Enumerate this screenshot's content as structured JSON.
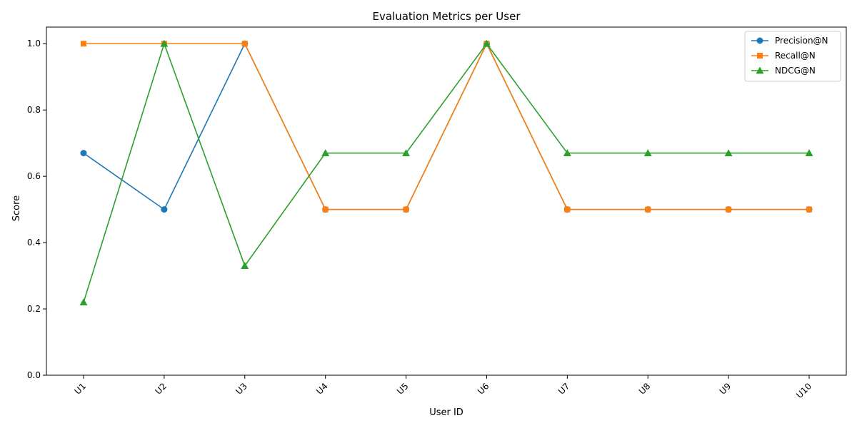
{
  "chart_data": {
    "type": "line",
    "title": "Evaluation Metrics per User",
    "xlabel": "User ID",
    "ylabel": "Score",
    "categories": [
      "U1",
      "U2",
      "U3",
      "U4",
      "U5",
      "U6",
      "U7",
      "U8",
      "U9",
      "U10"
    ],
    "ylim": [
      0,
      1.05
    ],
    "yticks": [
      0.0,
      0.2,
      0.4,
      0.6,
      0.8,
      1.0
    ],
    "ytick_labels": [
      "0.0",
      "0.2",
      "0.4",
      "0.6",
      "0.8",
      "1.0"
    ],
    "grid": false,
    "legend_position": "top-right",
    "series": [
      {
        "name": "Precision@N",
        "color": "#1f77b4",
        "marker": "circle",
        "values": [
          0.67,
          0.5,
          1.0,
          0.5,
          0.5,
          1.0,
          0.5,
          0.5,
          0.5,
          0.5
        ]
      },
      {
        "name": "Recall@N",
        "color": "#ff7f0e",
        "marker": "square",
        "values": [
          1.0,
          1.0,
          1.0,
          0.5,
          0.5,
          1.0,
          0.5,
          0.5,
          0.5,
          0.5
        ]
      },
      {
        "name": "NDCG@N",
        "color": "#2ca02c",
        "marker": "triangle",
        "values": [
          0.22,
          1.0,
          0.33,
          0.67,
          0.67,
          1.0,
          0.67,
          0.67,
          0.67,
          0.67
        ]
      }
    ]
  }
}
